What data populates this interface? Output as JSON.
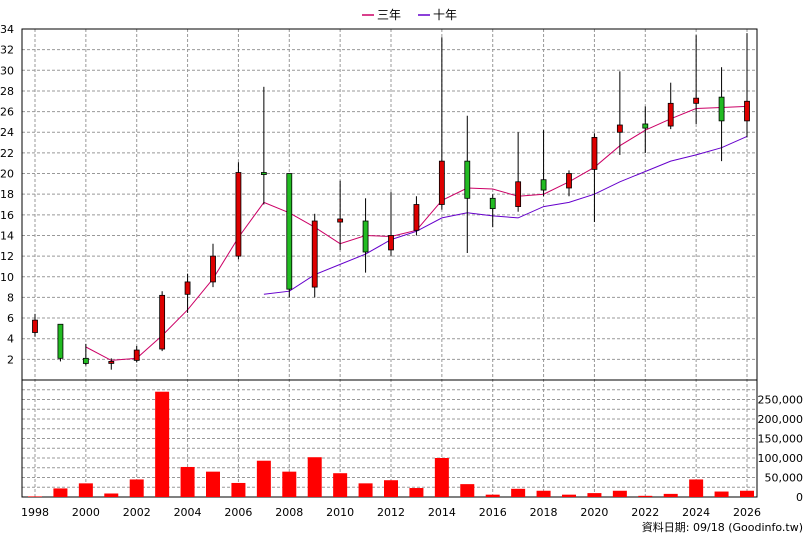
{
  "chart_data": {
    "type": "candlestick-volume",
    "legend": [
      {
        "name": "三年",
        "color": "#cc0066"
      },
      {
        "name": "十年",
        "color": "#6600cc"
      }
    ],
    "colors": {
      "up": "#dd0000",
      "down": "#22bb22",
      "volume": "#ff0000",
      "grid": "#999999"
    },
    "x_ticks": [
      "1998",
      "2000",
      "2002",
      "2004",
      "2006",
      "2008",
      "2010",
      "2012",
      "2014",
      "2016",
      "2018",
      "2020",
      "2022",
      "2024",
      "2026"
    ],
    "price_axis": {
      "min": 0,
      "max": 34,
      "ticks": [
        2,
        4,
        6,
        8,
        10,
        12,
        14,
        16,
        18,
        20,
        22,
        24,
        26,
        28,
        30,
        32,
        34
      ]
    },
    "volume_axis": {
      "min": 0,
      "max": 250000,
      "ticks": [
        "0",
        "50,000",
        "100,000",
        "150,000",
        "200,000",
        "250,000"
      ],
      "tick_values": [
        0,
        50000,
        100000,
        150000,
        200000,
        250000
      ]
    },
    "candles": [
      {
        "year": 1998,
        "open": 4.6,
        "close": 5.8,
        "high": 6.4,
        "low": 4.2
      },
      {
        "year": 1999,
        "open": 5.4,
        "close": 2.1,
        "high": 5.4,
        "low": 1.8
      },
      {
        "year": 2000,
        "open": 2.1,
        "close": 1.6,
        "high": 3.5,
        "low": 1.4
      },
      {
        "year": 2001,
        "open": 1.7,
        "close": 1.8,
        "high": 2.1,
        "low": 1.0
      },
      {
        "year": 2002,
        "open": 1.9,
        "close": 2.9,
        "high": 3.3,
        "low": 1.7
      },
      {
        "year": 2003,
        "open": 3.0,
        "close": 8.2,
        "high": 8.6,
        "low": 2.8
      },
      {
        "year": 2004,
        "open": 8.3,
        "close": 9.5,
        "high": 10.3,
        "low": 6.5
      },
      {
        "year": 2005,
        "open": 9.5,
        "close": 12.0,
        "high": 13.2,
        "low": 9.0
      },
      {
        "year": 2006,
        "open": 12.0,
        "close": 20.1,
        "high": 21.1,
        "low": 11.7
      },
      {
        "year": 2007,
        "open": 20.1,
        "close": 19.9,
        "high": 28.4,
        "low": 17.0
      },
      {
        "year": 2008,
        "open": 20.0,
        "close": 8.8,
        "high": 20.0,
        "low": 8.0
      },
      {
        "year": 2009,
        "open": 9.0,
        "close": 15.4,
        "high": 16.1,
        "low": 8.0
      },
      {
        "year": 2010,
        "open": 15.3,
        "close": 15.6,
        "high": 19.3,
        "low": 12.6
      },
      {
        "year": 2011,
        "open": 15.4,
        "close": 12.4,
        "high": 17.6,
        "low": 10.4
      },
      {
        "year": 2012,
        "open": 12.6,
        "close": 14.0,
        "high": 18.2,
        "low": 12.0
      },
      {
        "year": 2013,
        "open": 14.5,
        "close": 17.0,
        "high": 17.8,
        "low": 14.0
      },
      {
        "year": 2014,
        "open": 17.0,
        "close": 21.2,
        "high": 33.2,
        "low": 16.5
      },
      {
        "year": 2015,
        "open": 21.2,
        "close": 17.6,
        "high": 25.6,
        "low": 12.3
      },
      {
        "year": 2016,
        "open": 17.6,
        "close": 16.6,
        "high": 18.0,
        "low": 14.8
      },
      {
        "year": 2017,
        "open": 16.8,
        "close": 19.2,
        "high": 24.0,
        "low": 16.3
      },
      {
        "year": 2018,
        "open": 19.4,
        "close": 18.4,
        "high": 24.2,
        "low": 17.8
      },
      {
        "year": 2019,
        "open": 18.6,
        "close": 20.0,
        "high": 20.3,
        "low": 17.8
      },
      {
        "year": 2020,
        "open": 20.4,
        "close": 23.5,
        "high": 23.9,
        "low": 15.3
      },
      {
        "year": 2021,
        "open": 24.0,
        "close": 24.7,
        "high": 29.9,
        "low": 21.8
      },
      {
        "year": 2022,
        "open": 24.8,
        "close": 24.4,
        "high": 26.5,
        "low": 22.0
      },
      {
        "year": 2023,
        "open": 24.6,
        "close": 26.8,
        "high": 28.8,
        "low": 24.3
      },
      {
        "year": 2024,
        "open": 26.8,
        "close": 27.3,
        "high": 33.4,
        "low": 24.8
      },
      {
        "year": 2025,
        "open": 27.4,
        "close": 25.1,
        "high": 30.3,
        "low": 21.2
      },
      {
        "year": 2026,
        "open": 25.1,
        "close": 27.0,
        "high": 33.6,
        "low": 23.5
      }
    ],
    "ma3": [
      {
        "year": 2000,
        "value": 3.2
      },
      {
        "year": 2001,
        "value": 1.9
      },
      {
        "year": 2002,
        "value": 2.1
      },
      {
        "year": 2003,
        "value": 4.3
      },
      {
        "year": 2004,
        "value": 6.8
      },
      {
        "year": 2005,
        "value": 9.8
      },
      {
        "year": 2006,
        "value": 13.8
      },
      {
        "year": 2007,
        "value": 17.2
      },
      {
        "year": 2008,
        "value": 16.2
      },
      {
        "year": 2009,
        "value": 14.8
      },
      {
        "year": 2010,
        "value": 13.2
      },
      {
        "year": 2011,
        "value": 14.0
      },
      {
        "year": 2012,
        "value": 13.9
      },
      {
        "year": 2013,
        "value": 14.5
      },
      {
        "year": 2014,
        "value": 17.4
      },
      {
        "year": 2015,
        "value": 18.6
      },
      {
        "year": 2016,
        "value": 18.5
      },
      {
        "year": 2017,
        "value": 17.8
      },
      {
        "year": 2018,
        "value": 18.0
      },
      {
        "year": 2019,
        "value": 19.2
      },
      {
        "year": 2020,
        "value": 20.6
      },
      {
        "year": 2021,
        "value": 22.7
      },
      {
        "year": 2022,
        "value": 24.2
      },
      {
        "year": 2023,
        "value": 25.3
      },
      {
        "year": 2024,
        "value": 26.3
      },
      {
        "year": 2025,
        "value": 26.4
      },
      {
        "year": 2026,
        "value": 26.5
      }
    ],
    "ma10": [
      {
        "year": 2007,
        "value": 8.3
      },
      {
        "year": 2008,
        "value": 8.6
      },
      {
        "year": 2009,
        "value": 10.2
      },
      {
        "year": 2010,
        "value": 11.2
      },
      {
        "year": 2011,
        "value": 12.2
      },
      {
        "year": 2012,
        "value": 13.6
      },
      {
        "year": 2013,
        "value": 14.4
      },
      {
        "year": 2014,
        "value": 15.7
      },
      {
        "year": 2015,
        "value": 16.2
      },
      {
        "year": 2016,
        "value": 15.9
      },
      {
        "year": 2017,
        "value": 15.7
      },
      {
        "year": 2018,
        "value": 16.8
      },
      {
        "year": 2019,
        "value": 17.2
      },
      {
        "year": 2020,
        "value": 18.0
      },
      {
        "year": 2021,
        "value": 19.2
      },
      {
        "year": 2022,
        "value": 20.2
      },
      {
        "year": 2023,
        "value": 21.2
      },
      {
        "year": 2024,
        "value": 21.8
      },
      {
        "year": 2025,
        "value": 22.5
      },
      {
        "year": 2026,
        "value": 23.6
      }
    ],
    "volumes": [
      {
        "year": 1998,
        "value": 1500
      },
      {
        "year": 1999,
        "value": 22000
      },
      {
        "year": 2000,
        "value": 35000
      },
      {
        "year": 2001,
        "value": 9000
      },
      {
        "year": 2002,
        "value": 45000
      },
      {
        "year": 2003,
        "value": 270000
      },
      {
        "year": 2004,
        "value": 77000
      },
      {
        "year": 2005,
        "value": 65000
      },
      {
        "year": 2006,
        "value": 36000
      },
      {
        "year": 2007,
        "value": 93000
      },
      {
        "year": 2008,
        "value": 65000
      },
      {
        "year": 2009,
        "value": 102000
      },
      {
        "year": 2010,
        "value": 61000
      },
      {
        "year": 2011,
        "value": 35000
      },
      {
        "year": 2012,
        "value": 43000
      },
      {
        "year": 2013,
        "value": 23000
      },
      {
        "year": 2014,
        "value": 100000
      },
      {
        "year": 2015,
        "value": 33000
      },
      {
        "year": 2016,
        "value": 6000
      },
      {
        "year": 2017,
        "value": 21000
      },
      {
        "year": 2018,
        "value": 16000
      },
      {
        "year": 2019,
        "value": 6000
      },
      {
        "year": 2020,
        "value": 10000
      },
      {
        "year": 2021,
        "value": 16000
      },
      {
        "year": 2022,
        "value": 3000
      },
      {
        "year": 2023,
        "value": 8000
      },
      {
        "year": 2024,
        "value": 45000
      },
      {
        "year": 2025,
        "value": 14000
      },
      {
        "year": 2026,
        "value": 16000
      }
    ]
  },
  "footer": {
    "text": "資料日期: 09/18  (Goodinfo.tw)"
  }
}
